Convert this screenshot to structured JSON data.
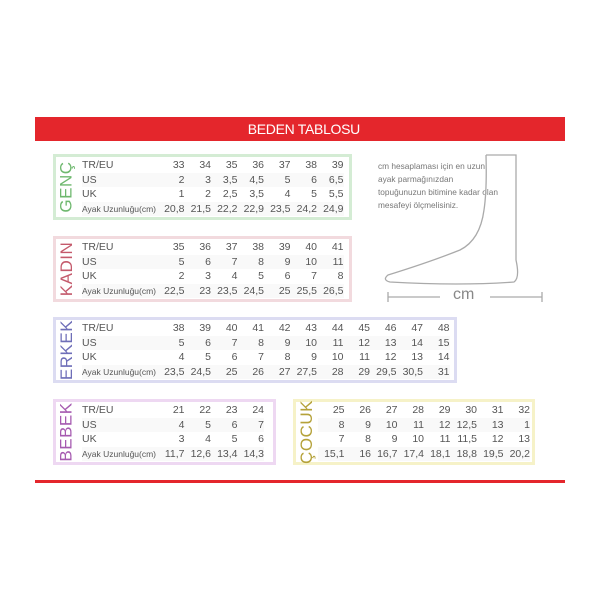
{
  "title": "BEDEN TABLOSU",
  "note": "cm hesaplaması için en uzun ayak parmağınızdan topuğunuzun bitimine kadar olan mesafeyi ölçmelisiniz.",
  "unit_label": "cm",
  "row_labels": [
    "TR/EU",
    "US",
    "UK",
    "Ayak Uzunluğu(cm)"
  ],
  "tables": [
    {
      "name": "GENÇ",
      "color": "#6fb86f",
      "border": "#d4ecd4",
      "rows": [
        [
          "33",
          "34",
          "35",
          "36",
          "37",
          "38",
          "39"
        ],
        [
          "2",
          "3",
          "3,5",
          "4,5",
          "5",
          "6",
          "6,5"
        ],
        [
          "1",
          "2",
          "2,5",
          "3,5",
          "4",
          "5",
          "5,5"
        ],
        [
          "20,8",
          "21,5",
          "22,2",
          "22,9",
          "23,5",
          "24,2",
          "24,9"
        ]
      ]
    },
    {
      "name": "KADIN",
      "color": "#c45a6c",
      "border": "#f2dade",
      "rows": [
        [
          "35",
          "36",
          "37",
          "38",
          "39",
          "40",
          "41"
        ],
        [
          "5",
          "6",
          "7",
          "8",
          "9",
          "10",
          "11"
        ],
        [
          "2",
          "3",
          "4",
          "5",
          "6",
          "7",
          "8"
        ],
        [
          "22,5",
          "23",
          "23,5",
          "24,5",
          "25",
          "25,5",
          "26,5"
        ]
      ]
    },
    {
      "name": "ERKEK",
      "color": "#6e6eb8",
      "border": "#dcdcf2",
      "rows": [
        [
          "38",
          "39",
          "40",
          "41",
          "42",
          "43",
          "44",
          "45",
          "46",
          "47",
          "48"
        ],
        [
          "5",
          "6",
          "7",
          "8",
          "9",
          "10",
          "11",
          "12",
          "13",
          "14",
          "15"
        ],
        [
          "4",
          "5",
          "6",
          "7",
          "8",
          "9",
          "10",
          "11",
          "12",
          "13",
          "14"
        ],
        [
          "23,5",
          "24,5",
          "25",
          "26",
          "27",
          "27,5",
          "28",
          "29",
          "29,5",
          "30,5",
          "31"
        ]
      ]
    },
    {
      "name": "BEBEK",
      "color": "#a65ab0",
      "border": "#eed8f2",
      "rows": [
        [
          "21",
          "22",
          "23",
          "24"
        ],
        [
          "4",
          "5",
          "6",
          "7"
        ],
        [
          "3",
          "4",
          "5",
          "6"
        ],
        [
          "11,7",
          "12,6",
          "13,4",
          "14,3"
        ]
      ]
    },
    {
      "name": "ÇOCUK",
      "color": "#b5a23a",
      "border": "#f6f2c8",
      "rows": [
        [
          "25",
          "26",
          "27",
          "28",
          "29",
          "30",
          "31",
          "32"
        ],
        [
          "8",
          "9",
          "10",
          "11",
          "12",
          "12,5",
          "13",
          "1"
        ],
        [
          "7",
          "8",
          "9",
          "10",
          "11",
          "11,5",
          "12",
          "13"
        ],
        [
          "15,1",
          "16",
          "16,7",
          "17,4",
          "18,1",
          "18,8",
          "19,5",
          "20,2"
        ]
      ]
    }
  ]
}
